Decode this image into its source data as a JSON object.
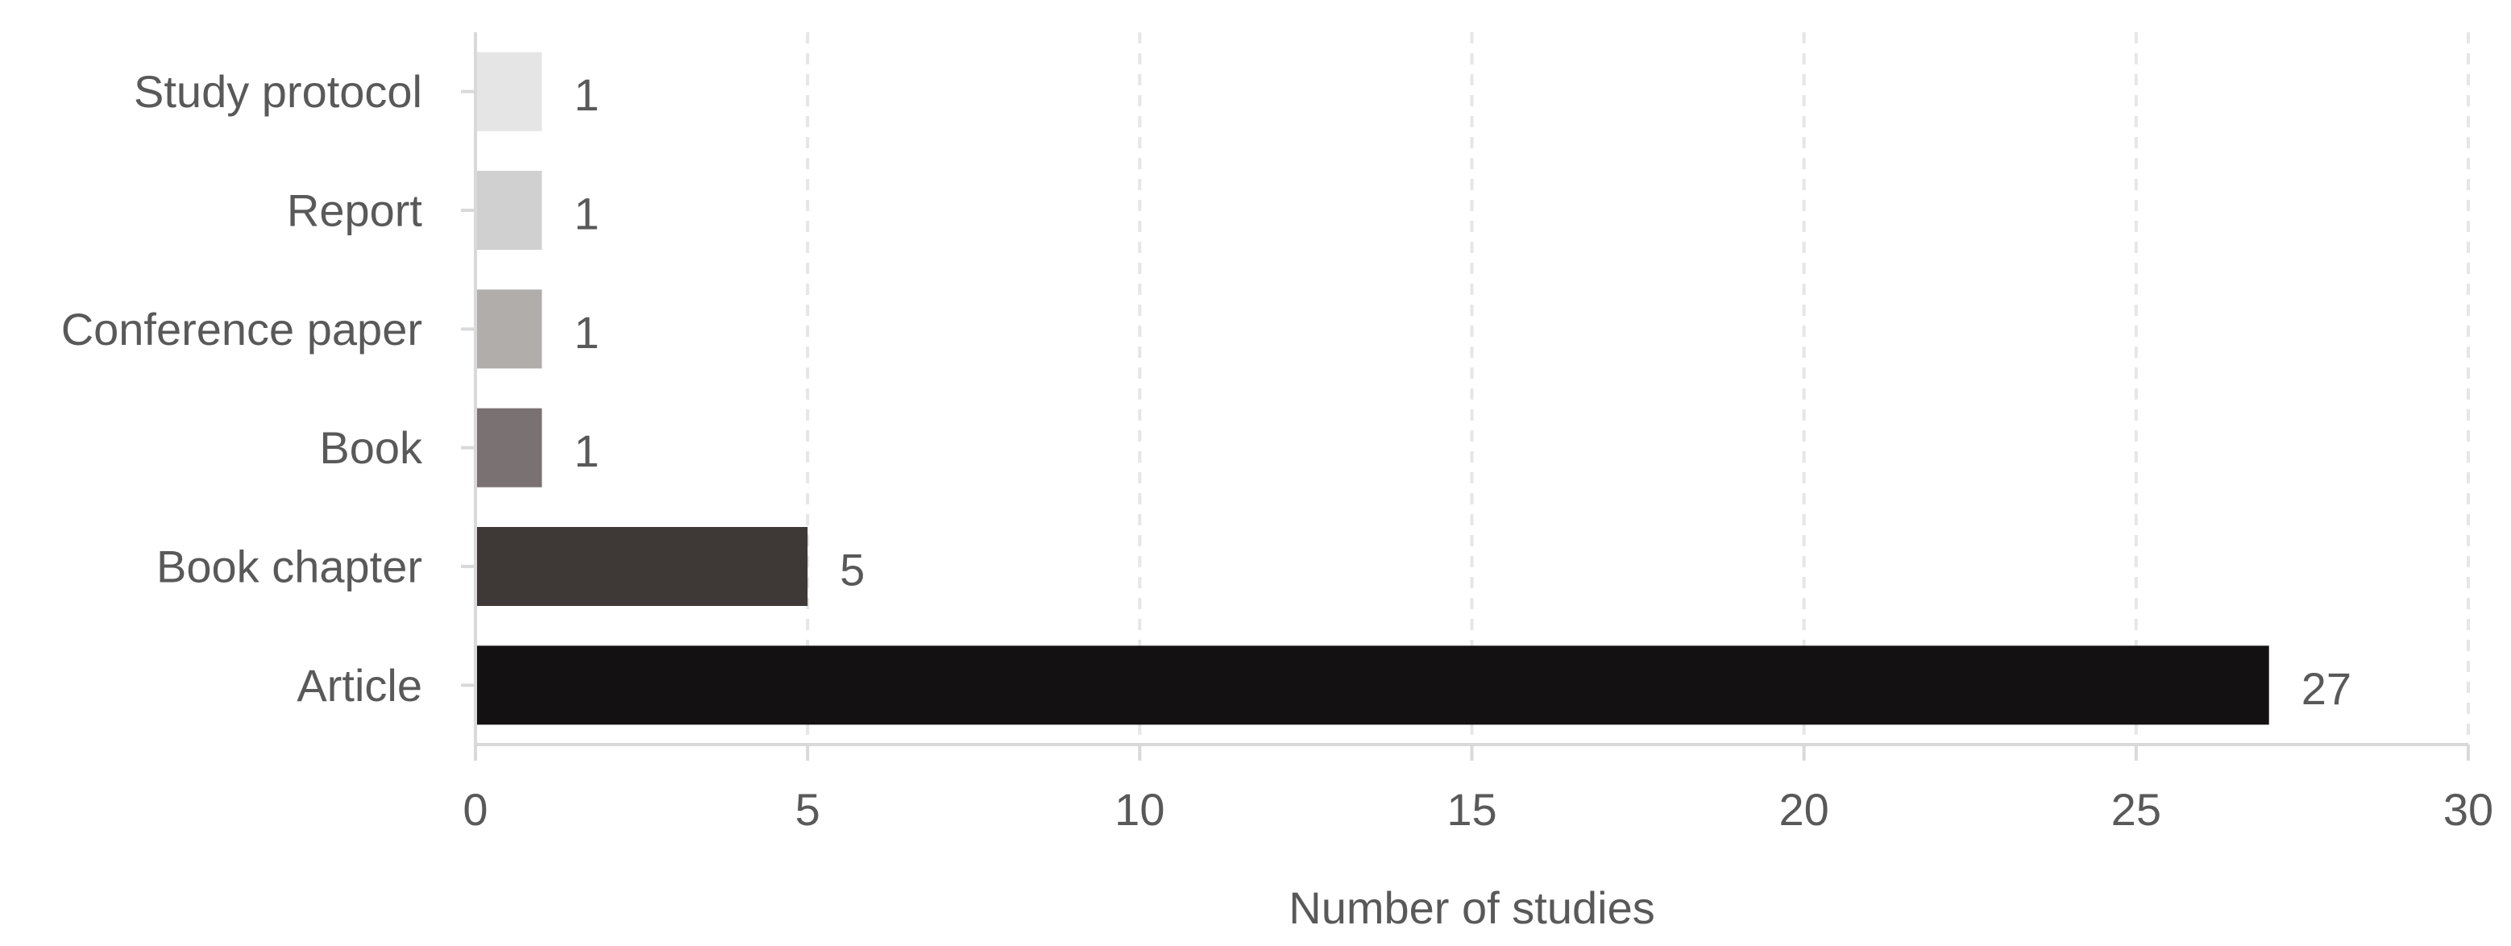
{
  "chart_data": {
    "type": "bar",
    "orientation": "horizontal",
    "categories": [
      "Study protocol",
      "Report",
      "Conference paper",
      "Book",
      "Book chapter",
      "Article"
    ],
    "values": [
      1,
      1,
      1,
      1,
      5,
      27
    ],
    "colors": [
      "#e6e5e6",
      "#d1d0d1",
      "#b1adab",
      "#7a7173",
      "#3e3836",
      "#131112"
    ],
    "title": "",
    "xlabel": "Number of studies",
    "ylabel": "",
    "xlim": [
      0,
      30
    ],
    "x_ticks": [
      0,
      5,
      10,
      15,
      20,
      25,
      30
    ],
    "grid": "vertical-dashed",
    "legend": "none",
    "data_labels": true
  }
}
